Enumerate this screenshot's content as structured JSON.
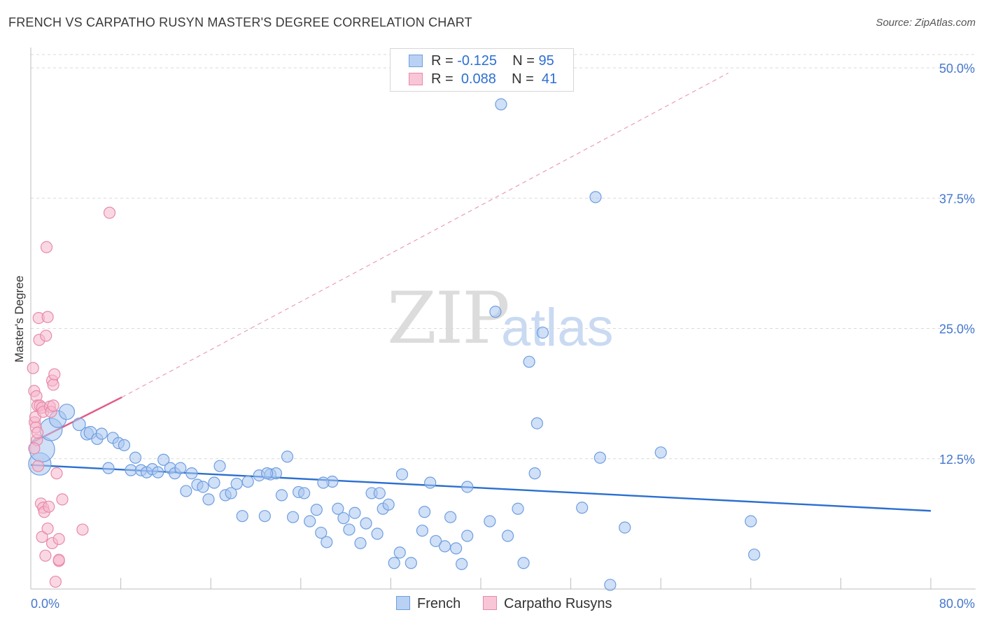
{
  "header": {
    "title": "FRENCH VS CARPATHO RUSYN MASTER'S DEGREE CORRELATION CHART",
    "source": "Source: ZipAtlas.com"
  },
  "watermark": {
    "zip": "ZIP",
    "atlas": "atlas"
  },
  "legend": {
    "r_label": "R =",
    "n_label": "N =",
    "rows": [
      {
        "name": "French",
        "r": "-0.125",
        "n": "95",
        "fill": "#b9d1f3",
        "stroke": "#6f9fdf"
      },
      {
        "name": "Carpatho Rusyns",
        "r": "0.088",
        "n": "41",
        "fill": "#f8c6d6",
        "stroke": "#e88aab"
      }
    ]
  },
  "colors": {
    "french_fill": "#a9c7f0",
    "french_stroke": "#6e9ee0",
    "french_line": "#2b6fcf",
    "rusyn_fill": "#f6b8cc",
    "rusyn_stroke": "#e78aaa",
    "rusyn_line": "#e05a8a",
    "grid": "#d9d9d9",
    "tick_text": "#4477cc"
  },
  "chart_data": {
    "type": "scatter",
    "title": "FRENCH VS CARPATHO RUSYN MASTER'S DEGREE CORRELATION CHART",
    "xlabel": "",
    "ylabel": "Master's Degree",
    "xlim": [
      0,
      80
    ],
    "ylim": [
      0,
      52
    ],
    "x_tick_labels": [
      "0.0%",
      "80.0%"
    ],
    "y_ticks": [
      12.5,
      25.0,
      37.5,
      50.0
    ],
    "y_tick_labels": [
      "12.5%",
      "25.0%",
      "37.5%",
      "50.0%"
    ],
    "grid": true,
    "series": [
      {
        "name": "French",
        "points": [
          {
            "x": 0.8,
            "y": 12.0,
            "s": 16
          },
          {
            "x": 1.0,
            "y": 13.4,
            "s": 18
          },
          {
            "x": 1.8,
            "y": 15.3,
            "s": 16
          },
          {
            "x": 2.4,
            "y": 16.3,
            "s": 12
          },
          {
            "x": 3.2,
            "y": 17.0,
            "s": 11
          },
          {
            "x": 4.3,
            "y": 15.8,
            "s": 9
          },
          {
            "x": 5.0,
            "y": 14.9,
            "s": 9
          },
          {
            "x": 5.3,
            "y": 15.0,
            "s": 9
          },
          {
            "x": 5.9,
            "y": 14.4,
            "s": 8
          },
          {
            "x": 6.3,
            "y": 14.9,
            "s": 8
          },
          {
            "x": 6.9,
            "y": 11.6,
            "s": 8
          },
          {
            "x": 7.3,
            "y": 14.5,
            "s": 8
          },
          {
            "x": 7.8,
            "y": 14.0,
            "s": 8
          },
          {
            "x": 8.3,
            "y": 13.8,
            "s": 8
          },
          {
            "x": 8.9,
            "y": 11.4,
            "s": 8
          },
          {
            "x": 9.3,
            "y": 12.6,
            "s": 8
          },
          {
            "x": 9.8,
            "y": 11.4,
            "s": 8
          },
          {
            "x": 10.3,
            "y": 11.2,
            "s": 8
          },
          {
            "x": 10.8,
            "y": 11.5,
            "s": 8
          },
          {
            "x": 11.3,
            "y": 11.2,
            "s": 8
          },
          {
            "x": 11.8,
            "y": 12.4,
            "s": 8
          },
          {
            "x": 12.4,
            "y": 11.6,
            "s": 8
          },
          {
            "x": 12.8,
            "y": 11.1,
            "s": 8
          },
          {
            "x": 13.3,
            "y": 11.6,
            "s": 8
          },
          {
            "x": 13.8,
            "y": 9.4,
            "s": 8
          },
          {
            "x": 14.3,
            "y": 11.1,
            "s": 8
          },
          {
            "x": 14.8,
            "y": 10.0,
            "s": 8
          },
          {
            "x": 15.3,
            "y": 9.8,
            "s": 8
          },
          {
            "x": 15.8,
            "y": 8.6,
            "s": 8
          },
          {
            "x": 16.3,
            "y": 10.2,
            "s": 8
          },
          {
            "x": 16.8,
            "y": 11.8,
            "s": 8
          },
          {
            "x": 17.3,
            "y": 9.0,
            "s": 8
          },
          {
            "x": 17.8,
            "y": 9.2,
            "s": 8
          },
          {
            "x": 18.3,
            "y": 10.1,
            "s": 8
          },
          {
            "x": 18.8,
            "y": 7.0,
            "s": 8
          },
          {
            "x": 19.3,
            "y": 10.3,
            "s": 8
          },
          {
            "x": 20.3,
            "y": 10.9,
            "s": 8
          },
          {
            "x": 20.8,
            "y": 7.0,
            "s": 8
          },
          {
            "x": 21.3,
            "y": 11.0,
            "s": 8
          },
          {
            "x": 21.8,
            "y": 11.1,
            "s": 8
          },
          {
            "x": 22.3,
            "y": 9.0,
            "s": 8
          },
          {
            "x": 22.8,
            "y": 12.7,
            "s": 8
          },
          {
            "x": 23.3,
            "y": 6.9,
            "s": 8
          },
          {
            "x": 23.8,
            "y": 9.3,
            "s": 8
          },
          {
            "x": 24.3,
            "y": 9.2,
            "s": 8
          },
          {
            "x": 24.8,
            "y": 6.5,
            "s": 8
          },
          {
            "x": 25.4,
            "y": 7.6,
            "s": 8
          },
          {
            "x": 25.8,
            "y": 5.4,
            "s": 8
          },
          {
            "x": 26.3,
            "y": 4.5,
            "s": 8
          },
          {
            "x": 26.8,
            "y": 10.3,
            "s": 8
          },
          {
            "x": 27.3,
            "y": 7.7,
            "s": 8
          },
          {
            "x": 27.8,
            "y": 6.8,
            "s": 8
          },
          {
            "x": 28.3,
            "y": 5.7,
            "s": 8
          },
          {
            "x": 28.8,
            "y": 7.3,
            "s": 8
          },
          {
            "x": 29.3,
            "y": 4.4,
            "s": 8
          },
          {
            "x": 29.8,
            "y": 6.3,
            "s": 8
          },
          {
            "x": 30.3,
            "y": 9.2,
            "s": 8
          },
          {
            "x": 30.8,
            "y": 5.3,
            "s": 8
          },
          {
            "x": 31.3,
            "y": 7.7,
            "s": 8
          },
          {
            "x": 31.8,
            "y": 8.1,
            "s": 8
          },
          {
            "x": 32.3,
            "y": 2.5,
            "s": 8
          },
          {
            "x": 32.8,
            "y": 3.5,
            "s": 8
          },
          {
            "x": 33.0,
            "y": 11.0,
            "s": 8
          },
          {
            "x": 33.8,
            "y": 2.5,
            "s": 8
          },
          {
            "x": 34.8,
            "y": 5.6,
            "s": 8
          },
          {
            "x": 35.0,
            "y": 7.4,
            "s": 8
          },
          {
            "x": 35.5,
            "y": 10.2,
            "s": 8
          },
          {
            "x": 36.0,
            "y": 4.6,
            "s": 8
          },
          {
            "x": 36.8,
            "y": 4.1,
            "s": 8
          },
          {
            "x": 37.3,
            "y": 6.9,
            "s": 8
          },
          {
            "x": 37.8,
            "y": 3.9,
            "s": 8
          },
          {
            "x": 38.3,
            "y": 2.4,
            "s": 8
          },
          {
            "x": 38.8,
            "y": 5.1,
            "s": 8
          },
          {
            "x": 40.8,
            "y": 6.5,
            "s": 8
          },
          {
            "x": 41.3,
            "y": 26.6,
            "s": 8
          },
          {
            "x": 41.8,
            "y": 46.5,
            "s": 8
          },
          {
            "x": 42.4,
            "y": 5.1,
            "s": 8
          },
          {
            "x": 43.3,
            "y": 7.7,
            "s": 8
          },
          {
            "x": 43.8,
            "y": 2.5,
            "s": 8
          },
          {
            "x": 44.3,
            "y": 21.8,
            "s": 8
          },
          {
            "x": 44.8,
            "y": 11.1,
            "s": 8
          },
          {
            "x": 45.0,
            "y": 15.9,
            "s": 8
          },
          {
            "x": 45.5,
            "y": 24.6,
            "s": 8
          },
          {
            "x": 38.8,
            "y": 9.8,
            "s": 8
          },
          {
            "x": 49.0,
            "y": 7.8,
            "s": 8
          },
          {
            "x": 50.2,
            "y": 37.6,
            "s": 8
          },
          {
            "x": 50.6,
            "y": 12.6,
            "s": 8
          },
          {
            "x": 51.5,
            "y": 0.4,
            "s": 8
          },
          {
            "x": 52.8,
            "y": 5.9,
            "s": 8
          },
          {
            "x": 56.0,
            "y": 13.1,
            "s": 8
          },
          {
            "x": 64.0,
            "y": 6.5,
            "s": 8
          },
          {
            "x": 64.3,
            "y": 3.3,
            "s": 8
          },
          {
            "x": 31.0,
            "y": 9.2,
            "s": 8
          },
          {
            "x": 26.0,
            "y": 10.2,
            "s": 8
          },
          {
            "x": 21.0,
            "y": 11.1,
            "s": 8
          }
        ]
      },
      {
        "name": "Carpatho Rusyns",
        "points": [
          {
            "x": 0.2,
            "y": 21.2,
            "s": 8
          },
          {
            "x": 0.3,
            "y": 19.0,
            "s": 8
          },
          {
            "x": 0.35,
            "y": 16.0,
            "s": 8
          },
          {
            "x": 0.4,
            "y": 16.5,
            "s": 8
          },
          {
            "x": 0.45,
            "y": 15.5,
            "s": 8
          },
          {
            "x": 0.5,
            "y": 18.5,
            "s": 8
          },
          {
            "x": 0.55,
            "y": 14.3,
            "s": 8
          },
          {
            "x": 0.6,
            "y": 17.6,
            "s": 8
          },
          {
            "x": 0.65,
            "y": 11.8,
            "s": 8
          },
          {
            "x": 0.7,
            "y": 26.0,
            "s": 8
          },
          {
            "x": 0.75,
            "y": 23.9,
            "s": 8
          },
          {
            "x": 0.8,
            "y": 17.6,
            "s": 8
          },
          {
            "x": 0.9,
            "y": 8.2,
            "s": 8
          },
          {
            "x": 1.0,
            "y": 5.0,
            "s": 8
          },
          {
            "x": 1.0,
            "y": 17.4,
            "s": 8
          },
          {
            "x": 1.1,
            "y": 17.0,
            "s": 8
          },
          {
            "x": 1.1,
            "y": 7.8,
            "s": 8
          },
          {
            "x": 1.2,
            "y": 7.4,
            "s": 8
          },
          {
            "x": 1.3,
            "y": 3.2,
            "s": 8
          },
          {
            "x": 1.35,
            "y": 24.3,
            "s": 8
          },
          {
            "x": 1.4,
            "y": 32.8,
            "s": 8
          },
          {
            "x": 1.5,
            "y": 26.1,
            "s": 8
          },
          {
            "x": 1.5,
            "y": 5.8,
            "s": 8
          },
          {
            "x": 1.6,
            "y": 7.9,
            "s": 8
          },
          {
            "x": 1.7,
            "y": 17.5,
            "s": 8
          },
          {
            "x": 1.8,
            "y": 17.0,
            "s": 8
          },
          {
            "x": 1.9,
            "y": 4.4,
            "s": 8
          },
          {
            "x": 1.9,
            "y": 20.0,
            "s": 8
          },
          {
            "x": 2.0,
            "y": 19.6,
            "s": 8
          },
          {
            "x": 2.0,
            "y": 17.6,
            "s": 8
          },
          {
            "x": 2.1,
            "y": 20.6,
            "s": 8
          },
          {
            "x": 2.2,
            "y": 0.7,
            "s": 8
          },
          {
            "x": 2.3,
            "y": 11.1,
            "s": 8
          },
          {
            "x": 2.5,
            "y": 4.8,
            "s": 8
          },
          {
            "x": 2.8,
            "y": 8.6,
            "s": 8
          },
          {
            "x": 2.5,
            "y": 2.7,
            "s": 8
          },
          {
            "x": 4.6,
            "y": 5.7,
            "s": 8
          },
          {
            "x": 7.0,
            "y": 36.1,
            "s": 8
          },
          {
            "x": 0.6,
            "y": 15.0,
            "s": 8
          },
          {
            "x": 0.3,
            "y": 13.5,
            "s": 8
          },
          {
            "x": 2.5,
            "y": 2.8,
            "s": 8
          }
        ]
      }
    ],
    "trendlines": [
      {
        "series": "French",
        "x": [
          0,
          80
        ],
        "y": [
          11.9,
          7.5
        ],
        "style": "solid"
      },
      {
        "series": "Carpatho Rusyns",
        "x": [
          0,
          8.1
        ],
        "y": [
          14.0,
          18.4
        ],
        "style": "solid"
      },
      {
        "series": "Carpatho Rusyns",
        "x": [
          8.1,
          62
        ],
        "y": [
          18.4,
          49.5
        ],
        "style": "dashed"
      }
    ]
  }
}
